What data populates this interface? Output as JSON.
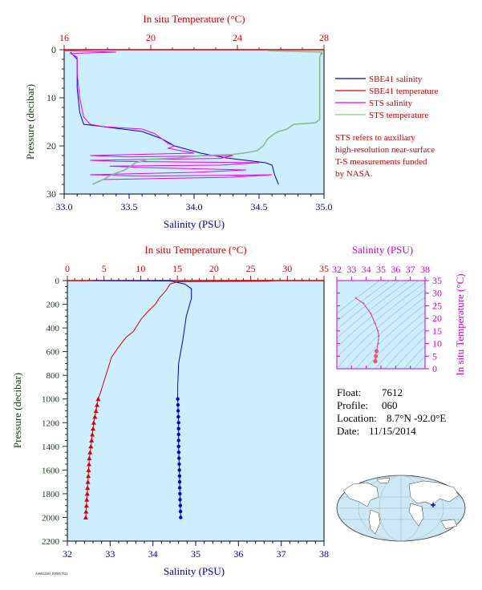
{
  "top_chart": {
    "top_axis_title": "In situ Temperature (°C)",
    "bottom_axis_title": "Salinity (PSU)",
    "left_axis_title": "Pressure (decibar)",
    "temp_ticks": [
      "16",
      "20",
      "24",
      "28"
    ],
    "sal_ticks": [
      "33.0",
      "33.5",
      "34.0",
      "34.5",
      "35.0"
    ],
    "pres_ticks": [
      "0",
      "10",
      "20",
      "30"
    ],
    "legend": [
      {
        "label": "SBE41 salinity",
        "color": "#0000cc"
      },
      {
        "label": "SBE41 temperature",
        "color": "#dd0000"
      },
      {
        "label": "STS salinity",
        "color": "#ee00ee"
      },
      {
        "label": "STS temperature",
        "color": "#66cc66"
      }
    ],
    "note_lines": [
      "STS refers to auxiliary",
      "high-resolution near-surface",
      "T-S measurements funded",
      "by NASA."
    ]
  },
  "bottom_chart": {
    "top_axis_title": "In situ Temperature (°C)",
    "bottom_axis_title": "Salinity (PSU)",
    "left_axis_title": "Pressure (decibar)",
    "temp_ticks": [
      "0",
      "5",
      "10",
      "15",
      "20",
      "25",
      "30",
      "35"
    ],
    "sal_ticks": [
      "32",
      "33",
      "34",
      "35",
      "36",
      "37",
      "38"
    ],
    "pres_ticks": [
      "0",
      "200",
      "400",
      "600",
      "800",
      "1000",
      "1200",
      "1400",
      "1600",
      "1800",
      "2000",
      "2200"
    ]
  },
  "ts_diagram": {
    "top_axis_title": "Salinity (PSU)",
    "right_axis_title": "In situ Temperature (°C)",
    "sal_ticks": [
      "32",
      "33",
      "34",
      "35",
      "36",
      "37",
      "38"
    ],
    "temp_ticks": [
      "0",
      "5",
      "10",
      "15",
      "20",
      "25",
      "30",
      "35"
    ]
  },
  "info": {
    "float_label": "Float:",
    "float_value": "7612",
    "profile_label": "Profile:",
    "profile_value": "060",
    "location_label": "Location:",
    "location_value": "8.7°N  -92.0°E",
    "date_label": "Date:",
    "date_value": "11/15/2014"
  },
  "footer_text": "AS6022203_E0000 7612",
  "colors": {
    "plot_bg": "#cceeff",
    "temperature": "#dd0000",
    "salinity": "#0000cc",
    "sts_salinity": "#ee00ee",
    "sts_temperature": "#88bb88",
    "ts_axis": "#cc00cc"
  },
  "chart_data": [
    {
      "type": "line",
      "title": "",
      "xlabel": "Salinity (PSU)",
      "x2label": "In situ Temperature (°C)",
      "ylabel": "Pressure (decibar)",
      "salinity_range": [
        33.0,
        35.0
      ],
      "temperature_range": [
        16,
        28
      ],
      "pressure_range": [
        0,
        30
      ],
      "y_inverted": true,
      "series": [
        {
          "name": "SBE41 salinity",
          "axis": "salinity",
          "points": [
            [
              33.05,
              0.5
            ],
            [
              33.1,
              2
            ],
            [
              33.1,
              8
            ],
            [
              33.12,
              13
            ],
            [
              33.15,
              15.5
            ],
            [
              33.3,
              16
            ],
            [
              33.6,
              17
            ],
            [
              33.75,
              18.5
            ],
            [
              33.85,
              20
            ],
            [
              34.05,
              21.5
            ],
            [
              34.25,
              22.5
            ],
            [
              34.4,
              23
            ],
            [
              34.55,
              23.5
            ],
            [
              34.6,
              24
            ],
            [
              34.62,
              26
            ],
            [
              34.65,
              28
            ]
          ]
        },
        {
          "name": "SBE41 temperature",
          "axis": "temperature",
          "points": [
            [
              27.9,
              0.5
            ],
            [
              27.9,
              1
            ]
          ]
        },
        {
          "name": "STS salinity",
          "axis": "salinity",
          "points": [
            [
              33.0,
              0.2
            ],
            [
              33.4,
              0.5
            ],
            [
              33.05,
              0.8
            ],
            [
              33.1,
              1.5
            ],
            [
              33.1,
              5
            ],
            [
              33.12,
              10
            ],
            [
              33.15,
              14
            ],
            [
              33.2,
              15.5
            ],
            [
              33.3,
              16
            ],
            [
              33.6,
              16.5
            ],
            [
              33.7,
              17.5
            ],
            [
              33.75,
              18.5
            ],
            [
              33.8,
              19.5
            ],
            [
              33.85,
              20
            ],
            [
              33.8,
              20.5
            ],
            [
              33.9,
              21
            ],
            [
              34.0,
              21.5
            ],
            [
              33.2,
              22
            ],
            [
              33.5,
              22.3
            ],
            [
              34.3,
              22
            ],
            [
              34.2,
              22.6
            ],
            [
              33.2,
              23
            ],
            [
              33.4,
              23.2
            ],
            [
              34.5,
              23.5
            ],
            [
              34.2,
              24
            ],
            [
              33.35,
              24.2
            ],
            [
              33.6,
              24.5
            ],
            [
              34.4,
              25
            ],
            [
              34.0,
              25.5
            ],
            [
              33.2,
              26
            ],
            [
              33.6,
              26.3
            ],
            [
              34.6,
              26
            ],
            [
              34.3,
              26.5
            ],
            [
              33.3,
              27
            ]
          ]
        },
        {
          "name": "STS temperature",
          "axis": "temperature",
          "points": [
            [
              25.4,
              0.2
            ],
            [
              27.9,
              0.5
            ],
            [
              27.8,
              1.5
            ],
            [
              27.8,
              14.5
            ],
            [
              27.6,
              15.2
            ],
            [
              26.6,
              15.5
            ],
            [
              26.3,
              16.5
            ],
            [
              25.9,
              17
            ],
            [
              25.7,
              17.5
            ],
            [
              25.4,
              18.5
            ],
            [
              25.2,
              20
            ],
            [
              24.9,
              21
            ],
            [
              24.3,
              21.5
            ],
            [
              23.7,
              21.8
            ],
            [
              22.4,
              22
            ],
            [
              21.2,
              22.5
            ],
            [
              19.9,
              22.8
            ],
            [
              19.3,
              23.5
            ],
            [
              18.8,
              25
            ],
            [
              18.2,
              26
            ],
            [
              17.8,
              27
            ],
            [
              17.3,
              28
            ]
          ]
        }
      ]
    },
    {
      "type": "line",
      "title": "",
      "xlabel": "Salinity (PSU)",
      "x2label": "In situ Temperature (°C)",
      "ylabel": "Pressure (decibar)",
      "salinity_range": [
        32,
        38
      ],
      "temperature_range": [
        0,
        35
      ],
      "pressure_range": [
        0,
        2200
      ],
      "y_inverted": true,
      "series": [
        {
          "name": "",
          "axis": "temperature",
          "points": [
            [
              28.2,
              0
            ],
            [
              27.5,
              5
            ],
            [
              15,
              10
            ],
            [
              14,
              30
            ],
            [
              13.5,
              80
            ],
            [
              12.5,
              150
            ],
            [
              12,
              200
            ],
            [
              11,
              260
            ],
            [
              10,
              330
            ],
            [
              9,
              430
            ],
            [
              8,
              480
            ],
            [
              7,
              560
            ],
            [
              6,
              650
            ],
            [
              5.5,
              750
            ],
            [
              5,
              850
            ],
            [
              4.5,
              950
            ],
            [
              4.2,
              1000
            ],
            [
              3.9,
              1100
            ],
            [
              3.6,
              1200
            ],
            [
              3.4,
              1300
            ],
            [
              3.2,
              1400
            ],
            [
              3.0,
              1500
            ],
            [
              2.9,
              1600
            ],
            [
              2.8,
              1700
            ],
            [
              2.7,
              1800
            ],
            [
              2.6,
              1900
            ],
            [
              2.5,
              2000
            ]
          ],
          "markers_from_pressure": 1000,
          "marker": "triangle"
        },
        {
          "name": "",
          "axis": "salinity",
          "points": [
            [
              32.6,
              0
            ],
            [
              34.4,
              3
            ],
            [
              34.75,
              30
            ],
            [
              34.9,
              70
            ],
            [
              34.9,
              150
            ],
            [
              34.78,
              300
            ],
            [
              34.7,
              500
            ],
            [
              34.6,
              700
            ],
            [
              34.58,
              900
            ],
            [
              34.58,
              1000
            ],
            [
              34.6,
              1200
            ],
            [
              34.6,
              1400
            ],
            [
              34.62,
              1600
            ],
            [
              34.63,
              1800
            ],
            [
              34.65,
              2000
            ]
          ],
          "markers_from_pressure": 1000,
          "marker": "circle"
        }
      ]
    },
    {
      "type": "scatter",
      "title": "",
      "xlabel": "Salinity (PSU)",
      "ylabel": "In situ Temperature (°C)",
      "x_range": [
        32,
        38
      ],
      "y_range": [
        0,
        35
      ],
      "series": [
        {
          "name": "",
          "points": [
            [
              33.3,
              28
            ],
            [
              33.8,
              26
            ],
            [
              34.3,
              22
            ],
            [
              34.6,
              18
            ],
            [
              34.8,
              15
            ],
            [
              34.85,
              13
            ],
            [
              34.8,
              10
            ],
            [
              34.7,
              7
            ],
            [
              34.65,
              5
            ],
            [
              34.62,
              3
            ]
          ]
        }
      ]
    }
  ]
}
